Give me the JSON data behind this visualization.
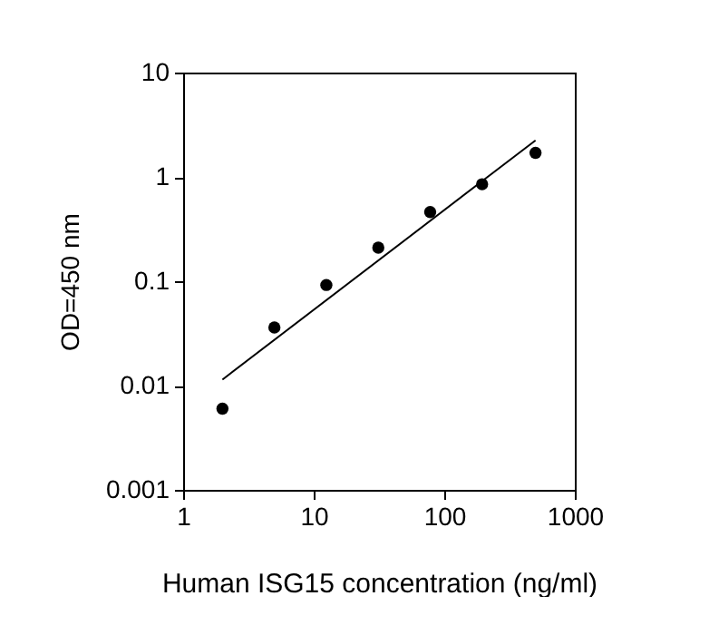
{
  "chart_data": {
    "type": "scatter",
    "xlabel": "Human ISG15 concentration (ng/ml)",
    "ylabel": "OD=450 nm",
    "log": "xy",
    "xlim": [
      1,
      1000
    ],
    "xticks": [
      1,
      10,
      100,
      1000
    ],
    "ylim": [
      0.001,
      10
    ],
    "yticks": [
      0.001,
      0.01,
      0.1,
      1,
      10
    ],
    "series": [
      {
        "marker": "circle",
        "color": "#000000",
        "x": [
          2,
          5,
          12.5,
          31.25,
          78,
          195,
          500
        ],
        "values": [
          0.006,
          0.036,
          0.092,
          0.21,
          0.46,
          0.85,
          1.7
        ]
      },
      {
        "type": "line",
        "color": "#000000",
        "x": [
          2,
          500
        ],
        "values": [
          0.0114,
          2.24
        ]
      }
    ]
  }
}
